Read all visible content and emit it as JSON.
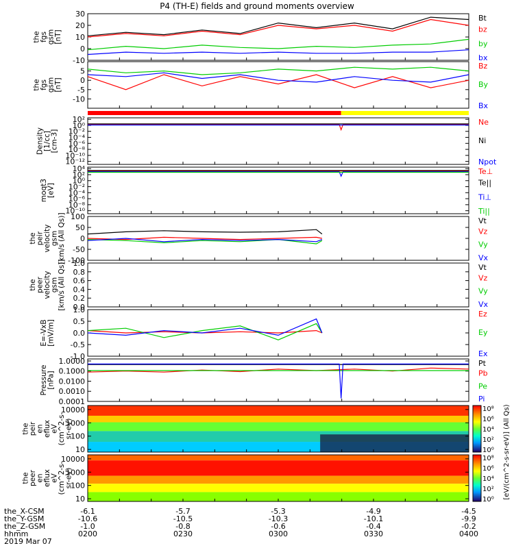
{
  "title": "P4 (TH-E) fields and ground moments overview",
  "footer": {
    "rows": [
      "the_X-CSM",
      "the_Y-GSM",
      "the_Z-GSM",
      "hhmm"
    ],
    "date": "2019 Mar 07",
    "ticks": [
      [
        "-6.1",
        "-5.7",
        "-5.3",
        "-4.9",
        "-4.5"
      ],
      [
        "-10.6",
        "-10.5",
        "-10.3",
        "-10.1",
        "-9.9"
      ],
      [
        "-1.0",
        "-0.8",
        "-0.6",
        "-0.4",
        "-0.2"
      ],
      [
        "0200",
        "0230",
        "0300",
        "0330",
        "0400"
      ]
    ]
  },
  "colorbar": {
    "label": "[eV/(cm^2-s-sr-eV)] (All Qs)",
    "ticks1": [
      "10⁸",
      "10⁶",
      "10⁴",
      "10²",
      "10⁰"
    ],
    "ticks2": [
      "10⁸",
      "10⁶",
      "10⁴",
      "10²",
      "10⁰"
    ]
  },
  "status_bar": {
    "colors": [
      "#ff0000",
      "#ffff00"
    ],
    "split_hour": 3.33
  },
  "chart_data": [
    {
      "type": "line",
      "id": "fgs1",
      "ylabel": [
        "the",
        "fgs",
        "gsm",
        "[nT]"
      ],
      "ylim": [
        -10,
        30
      ],
      "yticks": [
        "30",
        "20",
        "10",
        "0",
        "-10"
      ],
      "ytickvals": [
        30,
        20,
        10,
        0,
        -10
      ],
      "legend": [
        {
          "label": "Bt",
          "color": "#000000"
        },
        {
          "label": "bz",
          "color": "#ff0000"
        },
        {
          "label": "by",
          "color": "#00cc00"
        },
        {
          "label": "bx",
          "color": "#0000ff"
        }
      ],
      "series": [
        {
          "color": "#000000",
          "x": [
            2.0,
            2.2,
            2.4,
            2.6,
            2.8,
            3.0,
            3.2,
            3.4,
            3.6,
            3.8,
            4.0
          ],
          "y": [
            11,
            14,
            12,
            16,
            13,
            22,
            18,
            22,
            17,
            27,
            25
          ]
        },
        {
          "color": "#ff0000",
          "x": [
            2.0,
            2.2,
            2.4,
            2.6,
            2.8,
            3.0,
            3.2,
            3.4,
            3.6,
            3.8,
            4.0
          ],
          "y": [
            10,
            13,
            11,
            15,
            12,
            20,
            17,
            20,
            15,
            25,
            20
          ]
        },
        {
          "color": "#00cc00",
          "x": [
            2.0,
            2.2,
            2.4,
            2.6,
            2.8,
            3.0,
            3.2,
            3.4,
            3.6,
            3.8,
            4.0
          ],
          "y": [
            -1,
            2,
            0,
            3,
            1,
            0,
            2,
            1,
            3,
            4,
            8
          ]
        },
        {
          "color": "#0000ff",
          "x": [
            2.0,
            2.2,
            2.4,
            2.6,
            2.8,
            3.0,
            3.2,
            3.4,
            3.6,
            3.8,
            4.0
          ],
          "y": [
            -5,
            -3,
            -4,
            -3,
            -4,
            -3,
            -4,
            -4,
            -3,
            -3,
            -1
          ]
        }
      ]
    },
    {
      "type": "line",
      "id": "fgs2",
      "ylabel": [
        "the",
        "fgs",
        "gsm",
        "[nT]"
      ],
      "ylim": [
        -15,
        10
      ],
      "yticks": [
        "5",
        "0",
        "-5",
        "-10"
      ],
      "ytickvals": [
        5,
        0,
        -5,
        -10
      ],
      "legend": [
        {
          "label": "Bz",
          "color": "#ff0000"
        },
        {
          "label": "By",
          "color": "#00cc00"
        },
        {
          "label": "Bx",
          "color": "#0000ff"
        }
      ],
      "series": [
        {
          "color": "#ff0000",
          "x": [
            2.0,
            2.2,
            2.4,
            2.6,
            2.8,
            3.0,
            3.2,
            3.4,
            3.6,
            3.8,
            4.0
          ],
          "y": [
            2,
            -5,
            3,
            -3,
            2,
            -2,
            3,
            -4,
            2,
            -4,
            0
          ]
        },
        {
          "color": "#00cc00",
          "x": [
            2.0,
            2.2,
            2.4,
            2.6,
            2.8,
            3.0,
            3.2,
            3.4,
            3.6,
            3.8,
            4.0
          ],
          "y": [
            6,
            4,
            5,
            3,
            4,
            6,
            5,
            7,
            6,
            7,
            5
          ]
        },
        {
          "color": "#0000ff",
          "x": [
            2.0,
            2.2,
            2.4,
            2.6,
            2.8,
            3.0,
            3.2,
            3.4,
            3.6,
            3.8,
            4.0
          ],
          "y": [
            3,
            2,
            4,
            1,
            3,
            0,
            -1,
            2,
            0,
            -1,
            3
          ]
        }
      ]
    },
    {
      "type": "line",
      "id": "density",
      "ylabel": [
        "Density",
        "[1/cc]",
        "[cm-3]"
      ],
      "yticks": [
        "10²",
        "10⁰",
        "10⁻²",
        "10⁻⁴",
        "10⁻⁶",
        "10⁻⁸",
        "10⁻¹⁰",
        "10⁻¹²"
      ],
      "ylim": [
        -13,
        2.5
      ],
      "ytickvals": [
        2,
        0,
        -2,
        -4,
        -6,
        -8,
        -10,
        -12
      ],
      "yscale": "log",
      "legend": [
        {
          "label": "Ne",
          "color": "#ff0000"
        },
        {
          "label": "Ni",
          "color": "#000000"
        },
        {
          "label": "Npot",
          "color": "#0000ff"
        }
      ],
      "series": [
        {
          "color": "#ff0000",
          "x": [
            2.0,
            3.32,
            3.33,
            3.34,
            4.0
          ],
          "y": [
            0.3,
            0.3,
            -1.5,
            0.3,
            0.3
          ]
        },
        {
          "color": "#000000",
          "x": [
            2.0,
            4.0
          ],
          "y": [
            0.5,
            0.5
          ]
        },
        {
          "color": "#0000ff",
          "x": [
            2.0,
            4.0
          ],
          "y": [
            0.1,
            0.1
          ]
        }
      ]
    },
    {
      "type": "line",
      "id": "moqt3",
      "ylabel": [
        "moqt3",
        "[eV]"
      ],
      "yticks": [
        "10⁴",
        "10²",
        "10⁰",
        "10⁻²",
        "10⁻⁴",
        "10⁻⁶",
        "10⁻⁸",
        "10⁻¹⁰"
      ],
      "ylim": [
        -11,
        4.5
      ],
      "ytickvals": [
        4,
        2,
        0,
        -2,
        -4,
        -6,
        -8,
        -10
      ],
      "yscale": "log",
      "legend": [
        {
          "label": "Te⊥",
          "color": "#ff0000"
        },
        {
          "label": "Te||",
          "color": "#000000"
        },
        {
          "label": "Ti⊥",
          "color": "#0000ff"
        },
        {
          "label": "Ti||",
          "color": "#00cc00"
        }
      ],
      "series": [
        {
          "color": "#ff0000",
          "x": [
            2.0,
            4.0
          ],
          "y": [
            3.2,
            3.2
          ]
        },
        {
          "color": "#000000",
          "x": [
            2.0,
            4.0
          ],
          "y": [
            3.4,
            3.4
          ]
        },
        {
          "color": "#0000ff",
          "x": [
            2.0,
            3.32,
            3.33,
            3.34,
            4.0
          ],
          "y": [
            3.0,
            3.0,
            1.5,
            3.0,
            3.0
          ]
        },
        {
          "color": "#00cc00",
          "x": [
            2.0,
            4.0
          ],
          "y": [
            2.8,
            2.8
          ]
        }
      ]
    },
    {
      "type": "line",
      "id": "peir_vel",
      "ylabel": [
        "the",
        "peir",
        "velocity",
        "gsm",
        "[km/s (All Qs)]"
      ],
      "ylim": [
        -100,
        100
      ],
      "yticks": [
        "100",
        "50",
        "0",
        "-50",
        "-100"
      ],
      "ytickvals": [
        100,
        50,
        0,
        -50,
        -100
      ],
      "legend": [
        {
          "label": "Vt",
          "color": "#000000"
        },
        {
          "label": "Vz",
          "color": "#ff0000"
        },
        {
          "label": "Vy",
          "color": "#00cc00"
        },
        {
          "label": "Vx",
          "color": "#0000ff"
        }
      ],
      "series": [
        {
          "color": "#000000",
          "x": [
            2.0,
            2.2,
            2.4,
            2.6,
            2.8,
            3.0,
            3.2,
            3.23
          ],
          "y": [
            20,
            30,
            35,
            30,
            28,
            30,
            40,
            20
          ]
        },
        {
          "color": "#ff0000",
          "x": [
            2.0,
            2.2,
            2.4,
            2.6,
            2.8,
            3.0,
            3.2,
            3.23
          ],
          "y": [
            0,
            -5,
            5,
            0,
            -5,
            0,
            5,
            0
          ]
        },
        {
          "color": "#00cc00",
          "x": [
            2.0,
            2.2,
            2.4,
            2.6,
            2.8,
            3.0,
            3.2,
            3.23
          ],
          "y": [
            -5,
            -10,
            -20,
            -10,
            -15,
            -5,
            -25,
            -10
          ]
        },
        {
          "color": "#0000ff",
          "x": [
            2.0,
            2.2,
            2.4,
            2.6,
            2.8,
            3.0,
            3.2,
            3.23
          ],
          "y": [
            -10,
            0,
            -15,
            -5,
            -10,
            -5,
            -15,
            -5
          ]
        }
      ]
    },
    {
      "type": "line",
      "id": "peer_vel",
      "ylabel": [
        "the",
        "peer",
        "velocity",
        "gsm",
        "[km/s (All Qs)]"
      ],
      "ylim": [
        0,
        1
      ],
      "yticks": [
        "1.0",
        "0.8",
        "0.6",
        "0.4",
        "0.2",
        "0.0"
      ],
      "ytickvals": [
        1.0,
        0.8,
        0.6,
        0.4,
        0.2,
        0.0
      ],
      "legend": [
        {
          "label": "Vt",
          "color": "#000000"
        },
        {
          "label": "Vz",
          "color": "#ff0000"
        },
        {
          "label": "Vy",
          "color": "#00cc00"
        },
        {
          "label": "Vx",
          "color": "#0000ff"
        }
      ],
      "series": []
    },
    {
      "type": "line",
      "id": "efield",
      "ylabel": [
        "E=-VxB",
        "[mV/m]"
      ],
      "ylim": [
        -1,
        1
      ],
      "yticks": [
        "1.0",
        "0.5",
        "0.0",
        "-0.5",
        "-1.0"
      ],
      "ytickvals": [
        1.0,
        0.5,
        0.0,
        -0.5,
        -1.0
      ],
      "legend": [
        {
          "label": "Ez",
          "color": "#ff0000"
        },
        {
          "label": "Ey",
          "color": "#00cc00"
        },
        {
          "label": "Ex",
          "color": "#0000ff"
        }
      ],
      "series": [
        {
          "color": "#ff0000",
          "x": [
            2.0,
            2.2,
            2.4,
            2.6,
            2.8,
            3.0,
            3.2,
            3.23
          ],
          "y": [
            0.1,
            0.0,
            0.05,
            0.0,
            0.05,
            0.0,
            0.1,
            0.0
          ]
        },
        {
          "color": "#00cc00",
          "x": [
            2.0,
            2.2,
            2.4,
            2.6,
            2.8,
            3.0,
            3.2,
            3.23
          ],
          "y": [
            0.1,
            0.2,
            -0.2,
            0.1,
            0.3,
            -0.3,
            0.4,
            0.0
          ]
        },
        {
          "color": "#0000ff",
          "x": [
            2.0,
            2.2,
            2.4,
            2.6,
            2.8,
            3.0,
            3.2,
            3.23
          ],
          "y": [
            0.0,
            -0.1,
            0.1,
            0.0,
            0.2,
            -0.1,
            0.6,
            0.0
          ]
        }
      ]
    },
    {
      "type": "line",
      "id": "pressure",
      "ylabel": [
        "Pressure",
        "[nPa]"
      ],
      "yticks": [
        "1.0000",
        "0.1000",
        "0.0100",
        "0.0010",
        "0.0001"
      ],
      "ytickvals": [
        0,
        -1,
        -2,
        -3,
        -4
      ],
      "ylim": [
        -4,
        0.2
      ],
      "yscale": "log",
      "legend": [
        {
          "label": "Pt",
          "color": "#000000"
        },
        {
          "label": "Pb",
          "color": "#ff0000"
        },
        {
          "label": "Pe",
          "color": "#00cc00"
        },
        {
          "label": "Pi",
          "color": "#0000ff"
        }
      ],
      "series": [
        {
          "color": "#000000",
          "x": [
            2.0,
            4.0
          ],
          "y": [
            -0.35,
            -0.35
          ]
        },
        {
          "color": "#ff0000",
          "x": [
            2.0,
            2.2,
            2.4,
            2.6,
            2.8,
            3.0,
            3.2,
            3.4,
            3.6,
            3.8,
            4.0
          ],
          "y": [
            -1.1,
            -1.0,
            -1.1,
            -0.9,
            -1.05,
            -0.8,
            -0.95,
            -0.8,
            -1.0,
            -0.7,
            -0.8
          ]
        },
        {
          "color": "#00cc00",
          "x": [
            2.0,
            4.0
          ],
          "y": [
            -0.95,
            -0.95
          ]
        },
        {
          "color": "#0000ff",
          "x": [
            2.0,
            3.32,
            3.33,
            3.34,
            4.0
          ],
          "y": [
            -0.3,
            -0.3,
            -3.7,
            -0.3,
            -0.3
          ]
        }
      ]
    },
    {
      "type": "heatmap",
      "id": "peir_en",
      "ylabel": [
        "the",
        "peir",
        "en",
        "eflux",
        "eV",
        "(cm^2-s-",
        "sr-eV)"
      ],
      "yticks": [
        "10000",
        "1000",
        "100",
        "10"
      ],
      "ytickvals": [
        4,
        3,
        2,
        1
      ],
      "ylim": [
        0.8,
        4.3
      ],
      "yscale": "log"
    },
    {
      "type": "heatmap",
      "id": "peer_en",
      "ylabel": [
        "the",
        "peer",
        "en",
        "eflux",
        "eV",
        "(cm^2-s-",
        "sr-eV)"
      ],
      "yticks": [
        "10000",
        "1000",
        "100",
        "10"
      ],
      "ytickvals": [
        4,
        3,
        2,
        1
      ],
      "ylim": [
        0.8,
        4.3
      ],
      "yscale": "log"
    }
  ]
}
